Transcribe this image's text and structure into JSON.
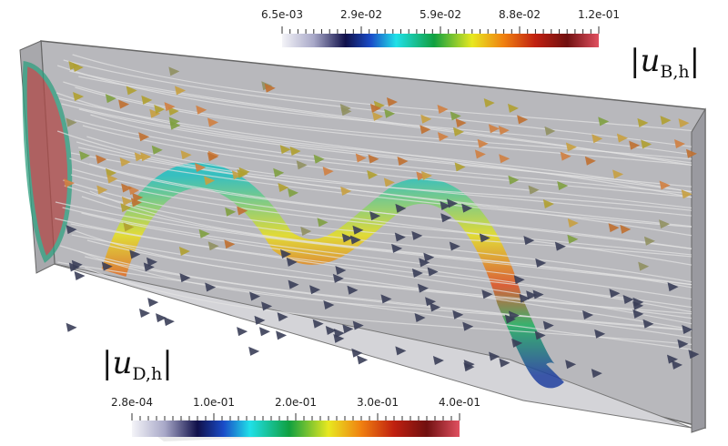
{
  "colorbars": [
    {
      "labels": [
        "6.5e-03",
        "2.9e-02",
        "5.9e-02",
        "8.8e-02",
        "1.2e-01"
      ],
      "title": {
        "open": "|",
        "symbol": "u",
        "subscript": "B,h",
        "close": "|"
      }
    },
    {
      "labels": [
        "2.8e-04",
        "1.0e-01",
        "2.0e-01",
        "3.0e-01",
        "4.0e-01"
      ],
      "title": {
        "open": "|",
        "symbol": "u",
        "subscript": "D,h",
        "close": "|"
      }
    }
  ]
}
